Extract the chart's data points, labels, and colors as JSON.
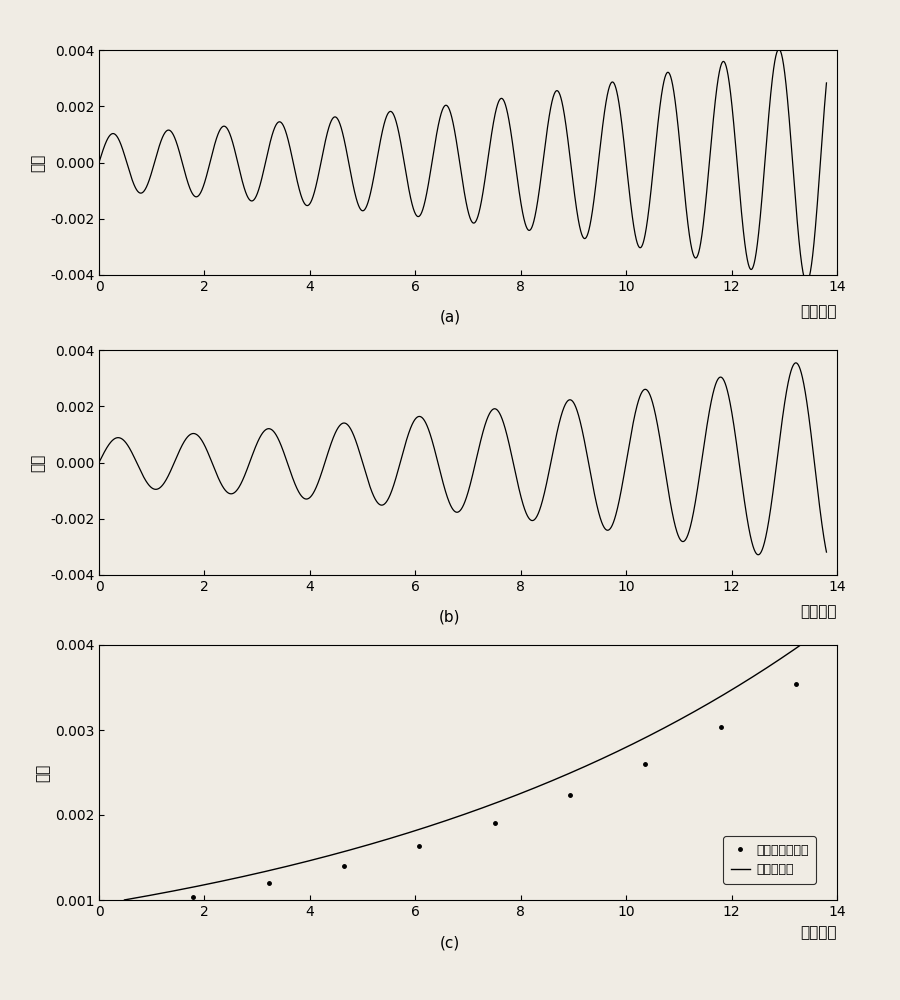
{
  "title_a": "(a)",
  "title_b": "(b)",
  "title_c": "(c)",
  "xlabel": "时间：秒",
  "ylabel": "幅値",
  "xlim": [
    0,
    14
  ],
  "ylim_ab": [
    -0.004,
    0.004
  ],
  "ylim_c": [
    0.001,
    0.004
  ],
  "xticks": [
    0,
    2,
    4,
    6,
    8,
    10,
    12,
    14
  ],
  "yticks_ab": [
    -0.004,
    -0.002,
    0,
    0.002,
    0.004
  ],
  "yticks_c": [
    0.001,
    0.002,
    0.003,
    0.004
  ],
  "legend_label1": "主导模式包络信",
  "legend_label2": "拟合包络线",
  "line_color": "#000000",
  "bg_color": "#f0ece4",
  "font_size": 11,
  "label_font_size": 11,
  "tick_font_size": 10,
  "sigma_a": 0.108,
  "freq_a": 0.95,
  "A_a": 0.001,
  "sigma_b": 0.108,
  "freq_b": 0.7,
  "A_b": 0.00085,
  "sigma_fit": 0.108,
  "A_fit": 0.00095
}
